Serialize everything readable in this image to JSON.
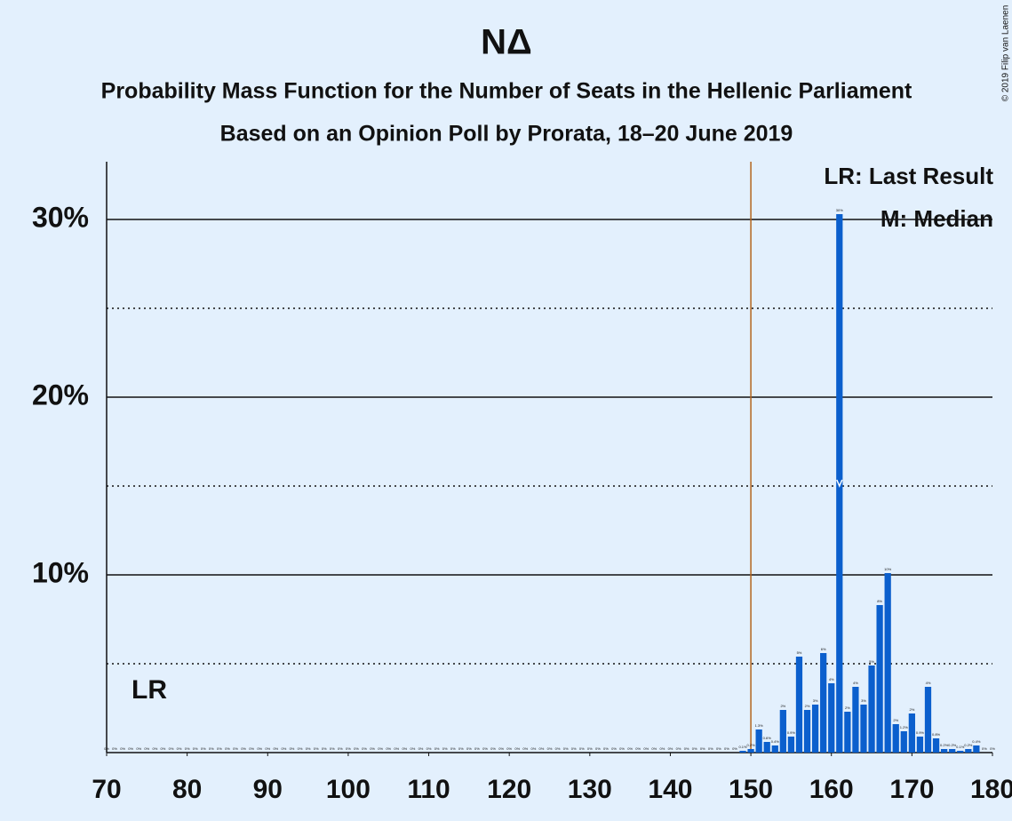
{
  "chart_data": {
    "type": "bar",
    "title": "ΝΔ",
    "subtitle": "Probability Mass Function for the Number of Seats in the Hellenic Parliament",
    "subtitle2": "Based on an Opinion Poll by Prorata, 18–20 June 2019",
    "legend_last_result": "LR: Last Result",
    "legend_median": "M: Median",
    "last_result_label": "LR",
    "copyright": "© 2019 Filip van Laenen",
    "last_result": 150,
    "median": 161,
    "color": "#0b5fcd",
    "last_result_color": "#b5651d",
    "x": [
      70,
      71,
      72,
      73,
      74,
      75,
      76,
      77,
      78,
      79,
      80,
      81,
      82,
      83,
      84,
      85,
      86,
      87,
      88,
      89,
      90,
      91,
      92,
      93,
      94,
      95,
      96,
      97,
      98,
      99,
      100,
      101,
      102,
      103,
      104,
      105,
      106,
      107,
      108,
      109,
      110,
      111,
      112,
      113,
      114,
      115,
      116,
      117,
      118,
      119,
      120,
      121,
      122,
      123,
      124,
      125,
      126,
      127,
      128,
      129,
      130,
      131,
      132,
      133,
      134,
      135,
      136,
      137,
      138,
      139,
      140,
      141,
      142,
      143,
      144,
      145,
      146,
      147,
      148,
      149,
      150,
      151,
      152,
      153,
      154,
      155,
      156,
      157,
      158,
      159,
      160,
      161,
      162,
      163,
      164,
      165,
      166,
      167,
      168,
      169,
      170,
      171,
      172,
      173,
      174,
      175,
      176,
      177,
      178,
      179,
      180
    ],
    "values": [
      0,
      0,
      0,
      0,
      0,
      0,
      0,
      0,
      0,
      0,
      0,
      0,
      0,
      0,
      0,
      0,
      0,
      0,
      0,
      0,
      0,
      0,
      0,
      0,
      0,
      0,
      0,
      0,
      0,
      0,
      0,
      0,
      0,
      0,
      0,
      0,
      0,
      0,
      0,
      0,
      0,
      0,
      0,
      0,
      0,
      0,
      0,
      0,
      0,
      0,
      0,
      0,
      0,
      0,
      0,
      0,
      0,
      0,
      0,
      0,
      0,
      0,
      0,
      0,
      0,
      0,
      0,
      0,
      0,
      0,
      0,
      0,
      0,
      0,
      0,
      0,
      0,
      0,
      0,
      0.1,
      0.2,
      1.3,
      0.6,
      0.4,
      2.4,
      0.9,
      5.4,
      2.4,
      2.7,
      5.6,
      3.9,
      30.3,
      2.3,
      3.7,
      2.7,
      4.9,
      8.3,
      10.1,
      1.6,
      1.2,
      2.2,
      0.9,
      3.7,
      0.8,
      0.2,
      0.2,
      0.1,
      0.2,
      0.4,
      0,
      0
    ],
    "value_labels": [
      "0%",
      "0%",
      "0%",
      "0%",
      "0%",
      "0%",
      "0%",
      "0%",
      "0%",
      "0%",
      "0%",
      "0%",
      "0%",
      "0%",
      "0%",
      "0%",
      "0%",
      "0%",
      "0%",
      "0%",
      "0%",
      "0%",
      "0%",
      "0%",
      "0%",
      "0%",
      "0%",
      "0%",
      "0%",
      "0%",
      "0%",
      "0%",
      "0%",
      "0%",
      "0%",
      "0%",
      "0%",
      "0%",
      "0%",
      "0%",
      "0%",
      "0%",
      "0%",
      "0%",
      "0%",
      "0%",
      "0%",
      "0%",
      "0%",
      "0%",
      "0%",
      "0%",
      "0%",
      "0%",
      "0%",
      "0%",
      "0%",
      "0%",
      "0%",
      "0%",
      "0%",
      "0%",
      "0%",
      "0%",
      "0%",
      "0%",
      "0%",
      "0%",
      "0%",
      "0%",
      "0%",
      "0%",
      "0%",
      "0%",
      "0%",
      "0%",
      "0%",
      "0%",
      "0%",
      "0.1%",
      "0.2%",
      "1.3%",
      "0.6%",
      "0.4%",
      "2%",
      "0.9%",
      "5%",
      "2%",
      "3%",
      "6%",
      "4%",
      "30%",
      "2%",
      "4%",
      "3%",
      "5%",
      "8%",
      "10%",
      "2%",
      "1.2%",
      "2%",
      "0.9%",
      "4%",
      "0.8%",
      "0.2%",
      "0.2%",
      "0.1%",
      "0.2%",
      "0.4%",
      "0%",
      "0%"
    ],
    "xlim": [
      70,
      180
    ],
    "xticks": [
      70,
      80,
      90,
      100,
      110,
      120,
      130,
      140,
      150,
      160,
      170,
      180
    ],
    "ylim": [
      0,
      33
    ],
    "yticks": [
      {
        "value": 10,
        "label": "10%"
      },
      {
        "value": 20,
        "label": "20%"
      },
      {
        "value": 30,
        "label": "30%"
      }
    ],
    "minor_yticks": [
      5,
      15,
      25
    ],
    "grid": true
  }
}
